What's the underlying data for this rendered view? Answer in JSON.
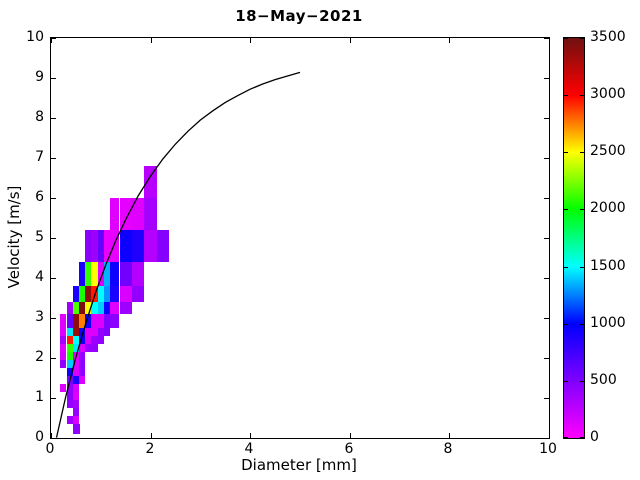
{
  "title": "18−May−2021",
  "axes": {
    "xlabel": "Diameter [mm]",
    "ylabel": "Velocity [m/s]",
    "xlim": [
      0,
      10
    ],
    "ylim": [
      0,
      10
    ],
    "xticks": [
      0,
      2,
      4,
      6,
      8,
      10
    ],
    "yticks": [
      0,
      1,
      2,
      3,
      4,
      5,
      6,
      7,
      8,
      9,
      10
    ]
  },
  "colorbar": {
    "min": 0,
    "max": 3500,
    "ticks": [
      0,
      500,
      1000,
      1500,
      2000,
      2500,
      3000,
      3500
    ],
    "colormap": [
      {
        "value": 0,
        "color": "#ff00ff"
      },
      {
        "value": 1000,
        "color": "#0000ff"
      },
      {
        "value": 1500,
        "color": "#00ffff"
      },
      {
        "value": 2000,
        "color": "#00ff00"
      },
      {
        "value": 2500,
        "color": "#ffff00"
      },
      {
        "value": 3000,
        "color": "#ff0000"
      },
      {
        "value": 3500,
        "color": "#701010"
      }
    ]
  },
  "chart_data": {
    "type": "heatmap",
    "title": "18−May−2021",
    "xlabel": "Diameter [mm]",
    "ylabel": "Velocity [m/s]",
    "xlim": [
      0,
      10
    ],
    "ylim": [
      0,
      10
    ],
    "grid": false,
    "legend": "colorbar-right",
    "cells": [
      {
        "d": [
          1.875,
          2.125
        ],
        "v": [
          6.0,
          6.8
        ],
        "value": 280
      },
      {
        "d": [
          1.187,
          1.375
        ],
        "v": [
          5.2,
          6.0
        ],
        "value": 120
      },
      {
        "d": [
          1.375,
          1.625
        ],
        "v": [
          5.2,
          6.0
        ],
        "value": 100
      },
      {
        "d": [
          1.625,
          1.875
        ],
        "v": [
          5.2,
          6.0
        ],
        "value": 120
      },
      {
        "d": [
          1.875,
          2.125
        ],
        "v": [
          5.2,
          6.0
        ],
        "value": 350
      },
      {
        "d": [
          0.687,
          0.812
        ],
        "v": [
          4.4,
          5.2
        ],
        "value": 450
      },
      {
        "d": [
          0.812,
          0.937
        ],
        "v": [
          4.4,
          5.2
        ],
        "value": 380
      },
      {
        "d": [
          0.937,
          1.062
        ],
        "v": [
          4.4,
          5.2
        ],
        "value": 600
      },
      {
        "d": [
          1.062,
          1.187
        ],
        "v": [
          4.4,
          5.2
        ],
        "value": 80
      },
      {
        "d": [
          1.187,
          1.375
        ],
        "v": [
          4.4,
          5.2
        ],
        "value": 90
      },
      {
        "d": [
          1.375,
          1.625
        ],
        "v": [
          4.4,
          5.2
        ],
        "value": 950
      },
      {
        "d": [
          1.625,
          1.875
        ],
        "v": [
          4.4,
          5.2
        ],
        "value": 880
      },
      {
        "d": [
          1.875,
          2.125
        ],
        "v": [
          4.4,
          5.2
        ],
        "value": 300
      },
      {
        "d": [
          2.125,
          2.375
        ],
        "v": [
          4.4,
          5.2
        ],
        "value": 480
      },
      {
        "d": [
          0.562,
          0.687
        ],
        "v": [
          3.8,
          4.4
        ],
        "value": 900
      },
      {
        "d": [
          0.687,
          0.812
        ],
        "v": [
          3.8,
          4.4
        ],
        "value": 2100
      },
      {
        "d": [
          0.812,
          0.937
        ],
        "v": [
          3.8,
          4.4
        ],
        "value": 2500
      },
      {
        "d": [
          0.937,
          1.062
        ],
        "v": [
          3.8,
          4.4
        ],
        "value": 120
      },
      {
        "d": [
          1.062,
          1.187
        ],
        "v": [
          3.8,
          4.4
        ],
        "value": 1350
      },
      {
        "d": [
          1.187,
          1.375
        ],
        "v": [
          3.8,
          4.4
        ],
        "value": 950
      },
      {
        "d": [
          1.375,
          1.625
        ],
        "v": [
          3.8,
          4.4
        ],
        "value": 550
      },
      {
        "d": [
          1.625,
          1.875
        ],
        "v": [
          3.8,
          4.4
        ],
        "value": 300
      },
      {
        "d": [
          0.437,
          0.562
        ],
        "v": [
          3.4,
          3.8
        ],
        "value": 900
      },
      {
        "d": [
          0.562,
          0.687
        ],
        "v": [
          3.4,
          3.8
        ],
        "value": 2050
      },
      {
        "d": [
          0.687,
          0.812
        ],
        "v": [
          3.4,
          3.8
        ],
        "value": 3400
      },
      {
        "d": [
          0.812,
          0.937
        ],
        "v": [
          3.4,
          3.8
        ],
        "value": 2950
      },
      {
        "d": [
          0.937,
          1.062
        ],
        "v": [
          3.4,
          3.8
        ],
        "value": 1500
      },
      {
        "d": [
          1.062,
          1.187
        ],
        "v": [
          3.4,
          3.8
        ],
        "value": 1300
      },
      {
        "d": [
          1.187,
          1.375
        ],
        "v": [
          3.4,
          3.8
        ],
        "value": 900
      },
      {
        "d": [
          1.375,
          1.625
        ],
        "v": [
          3.4,
          3.8
        ],
        "value": 150
      },
      {
        "d": [
          1.625,
          1.875
        ],
        "v": [
          3.4,
          3.8
        ],
        "value": 420
      },
      {
        "d": [
          0.312,
          0.437
        ],
        "v": [
          3.1,
          3.4
        ],
        "value": 380
      },
      {
        "d": [
          0.437,
          0.562
        ],
        "v": [
          3.1,
          3.4
        ],
        "value": 2150
      },
      {
        "d": [
          0.562,
          0.687
        ],
        "v": [
          3.1,
          3.4
        ],
        "value": 3450
      },
      {
        "d": [
          0.687,
          0.812
        ],
        "v": [
          3.1,
          3.4
        ],
        "value": 2500
      },
      {
        "d": [
          0.812,
          0.937
        ],
        "v": [
          3.1,
          3.4
        ],
        "value": 1500
      },
      {
        "d": [
          0.937,
          1.062
        ],
        "v": [
          3.1,
          3.4
        ],
        "value": 1400
      },
      {
        "d": [
          1.062,
          1.187
        ],
        "v": [
          3.1,
          3.4
        ],
        "value": 950
      },
      {
        "d": [
          1.187,
          1.375
        ],
        "v": [
          3.1,
          3.4
        ],
        "value": 130
      },
      {
        "d": [
          1.375,
          1.625
        ],
        "v": [
          3.1,
          3.4
        ],
        "value": 380
      },
      {
        "d": [
          0.187,
          0.312
        ],
        "v": [
          2.75,
          3.1
        ],
        "value": 120
      },
      {
        "d": [
          0.312,
          0.437
        ],
        "v": [
          2.75,
          3.1
        ],
        "value": 600
      },
      {
        "d": [
          0.437,
          0.562
        ],
        "v": [
          2.75,
          3.1
        ],
        "value": 3400
      },
      {
        "d": [
          0.562,
          0.687
        ],
        "v": [
          2.75,
          3.1
        ],
        "value": 2750
      },
      {
        "d": [
          0.687,
          0.812
        ],
        "v": [
          2.75,
          3.1
        ],
        "value": 950
      },
      {
        "d": [
          0.812,
          0.937
        ],
        "v": [
          2.75,
          3.1
        ],
        "value": 150
      },
      {
        "d": [
          0.937,
          1.062
        ],
        "v": [
          2.75,
          3.1
        ],
        "value": 130
      },
      {
        "d": [
          1.062,
          1.187
        ],
        "v": [
          2.75,
          3.1
        ],
        "value": 500
      },
      {
        "d": [
          1.187,
          1.375
        ],
        "v": [
          2.75,
          3.1
        ],
        "value": 450
      },
      {
        "d": [
          0.187,
          0.312
        ],
        "v": [
          2.55,
          2.75
        ],
        "value": 130
      },
      {
        "d": [
          0.312,
          0.437
        ],
        "v": [
          2.55,
          2.75
        ],
        "value": 1450
      },
      {
        "d": [
          0.437,
          0.562
        ],
        "v": [
          2.55,
          2.75
        ],
        "value": 3350
      },
      {
        "d": [
          0.562,
          0.687
        ],
        "v": [
          2.55,
          2.75
        ],
        "value": 950
      },
      {
        "d": [
          0.687,
          0.812
        ],
        "v": [
          2.55,
          2.75
        ],
        "value": 120
      },
      {
        "d": [
          0.812,
          0.937
        ],
        "v": [
          2.55,
          2.75
        ],
        "value": 150
      },
      {
        "d": [
          0.937,
          1.062
        ],
        "v": [
          2.55,
          2.75
        ],
        "value": 420
      },
      {
        "d": [
          1.062,
          1.187
        ],
        "v": [
          2.55,
          2.75
        ],
        "value": 480
      },
      {
        "d": [
          0.187,
          0.312
        ],
        "v": [
          2.35,
          2.55
        ],
        "value": 350
      },
      {
        "d": [
          0.312,
          0.437
        ],
        "v": [
          2.35,
          2.55
        ],
        "value": 2950
      },
      {
        "d": [
          0.437,
          0.562
        ],
        "v": [
          2.35,
          2.55
        ],
        "value": 1500
      },
      {
        "d": [
          0.562,
          0.687
        ],
        "v": [
          2.35,
          2.55
        ],
        "value": 950
      },
      {
        "d": [
          0.687,
          0.812
        ],
        "v": [
          2.35,
          2.55
        ],
        "value": 150
      },
      {
        "d": [
          0.812,
          0.937
        ],
        "v": [
          2.35,
          2.55
        ],
        "value": 400
      },
      {
        "d": [
          0.937,
          1.062
        ],
        "v": [
          2.35,
          2.55
        ],
        "value": 420
      },
      {
        "d": [
          0.187,
          0.312
        ],
        "v": [
          2.15,
          2.35
        ],
        "value": 130
      },
      {
        "d": [
          0.312,
          0.437
        ],
        "v": [
          2.15,
          2.35
        ],
        "value": 2100
      },
      {
        "d": [
          0.437,
          0.562
        ],
        "v": [
          2.15,
          2.35
        ],
        "value": 1450
      },
      {
        "d": [
          0.562,
          0.687
        ],
        "v": [
          2.15,
          2.35
        ],
        "value": 130
      },
      {
        "d": [
          0.687,
          0.812
        ],
        "v": [
          2.15,
          2.35
        ],
        "value": 380
      },
      {
        "d": [
          0.812,
          0.937
        ],
        "v": [
          2.15,
          2.35
        ],
        "value": 420
      },
      {
        "d": [
          0.187,
          0.312
        ],
        "v": [
          1.95,
          2.15
        ],
        "value": 160
      },
      {
        "d": [
          0.312,
          0.437
        ],
        "v": [
          1.95,
          2.15
        ],
        "value": 2050
      },
      {
        "d": [
          0.437,
          0.562
        ],
        "v": [
          1.95,
          2.15
        ],
        "value": 130
      },
      {
        "d": [
          0.562,
          0.687
        ],
        "v": [
          1.95,
          2.15
        ],
        "value": 400
      },
      {
        "d": [
          0.187,
          0.312
        ],
        "v": [
          1.75,
          1.95
        ],
        "value": 420
      },
      {
        "d": [
          0.312,
          0.437
        ],
        "v": [
          1.75,
          1.95
        ],
        "value": 1400
      },
      {
        "d": [
          0.437,
          0.562
        ],
        "v": [
          1.75,
          1.95
        ],
        "value": 140
      },
      {
        "d": [
          0.562,
          0.687
        ],
        "v": [
          1.75,
          1.95
        ],
        "value": 430
      },
      {
        "d": [
          0.312,
          0.437
        ],
        "v": [
          1.55,
          1.75
        ],
        "value": 950
      },
      {
        "d": [
          0.437,
          0.562
        ],
        "v": [
          1.55,
          1.75
        ],
        "value": 150
      },
      {
        "d": [
          0.562,
          0.687
        ],
        "v": [
          1.55,
          1.75
        ],
        "value": 420
      },
      {
        "d": [
          0.312,
          0.437
        ],
        "v": [
          1.35,
          1.55
        ],
        "value": 500
      },
      {
        "d": [
          0.437,
          0.562
        ],
        "v": [
          1.35,
          1.55
        ],
        "value": 900
      },
      {
        "d": [
          0.562,
          0.687
        ],
        "v": [
          1.35,
          1.55
        ],
        "value": 150
      },
      {
        "d": [
          0.187,
          0.312
        ],
        "v": [
          1.15,
          1.35
        ],
        "value": 140
      },
      {
        "d": [
          0.312,
          0.437
        ],
        "v": [
          1.15,
          1.35
        ],
        "value": 420
      },
      {
        "d": [
          0.437,
          0.562
        ],
        "v": [
          1.15,
          1.35
        ],
        "value": 160
      },
      {
        "d": [
          0.312,
          0.437
        ],
        "v": [
          0.95,
          1.15
        ],
        "value": 450
      },
      {
        "d": [
          0.437,
          0.562
        ],
        "v": [
          0.95,
          1.15
        ],
        "value": 130
      },
      {
        "d": [
          0.312,
          0.437
        ],
        "v": [
          0.75,
          0.95
        ],
        "value": 420
      },
      {
        "d": [
          0.437,
          0.562
        ],
        "v": [
          0.75,
          0.95
        ],
        "value": 350
      },
      {
        "d": [
          0.437,
          0.562
        ],
        "v": [
          0.55,
          0.75
        ],
        "value": 400
      },
      {
        "d": [
          0.312,
          0.437
        ],
        "v": [
          0.35,
          0.55
        ],
        "value": 380
      },
      {
        "d": [
          0.437,
          0.562
        ],
        "v": [
          0.35,
          0.55
        ],
        "value": 150
      },
      {
        "d": [
          0.437,
          0.587
        ],
        "v": [
          0.1,
          0.35
        ],
        "value": 430
      }
    ],
    "curve": {
      "name": "terminal-velocity-curve",
      "color": "#000000",
      "points": [
        [
          0.11,
          0.01
        ],
        [
          0.3,
          1.05
        ],
        [
          0.5,
          2.02
        ],
        [
          0.7,
          2.88
        ],
        [
          0.9,
          3.65
        ],
        [
          1.1,
          4.33
        ],
        [
          1.3,
          4.93
        ],
        [
          1.5,
          5.46
        ],
        [
          1.75,
          6.05
        ],
        [
          2.0,
          6.55
        ],
        [
          2.25,
          6.98
        ],
        [
          2.5,
          7.35
        ],
        [
          2.75,
          7.67
        ],
        [
          3.0,
          7.95
        ],
        [
          3.25,
          8.18
        ],
        [
          3.5,
          8.39
        ],
        [
          3.75,
          8.56
        ],
        [
          4.0,
          8.72
        ],
        [
          4.25,
          8.85
        ],
        [
          4.5,
          8.96
        ],
        [
          4.75,
          9.05
        ],
        [
          5.0,
          9.14
        ]
      ]
    }
  }
}
